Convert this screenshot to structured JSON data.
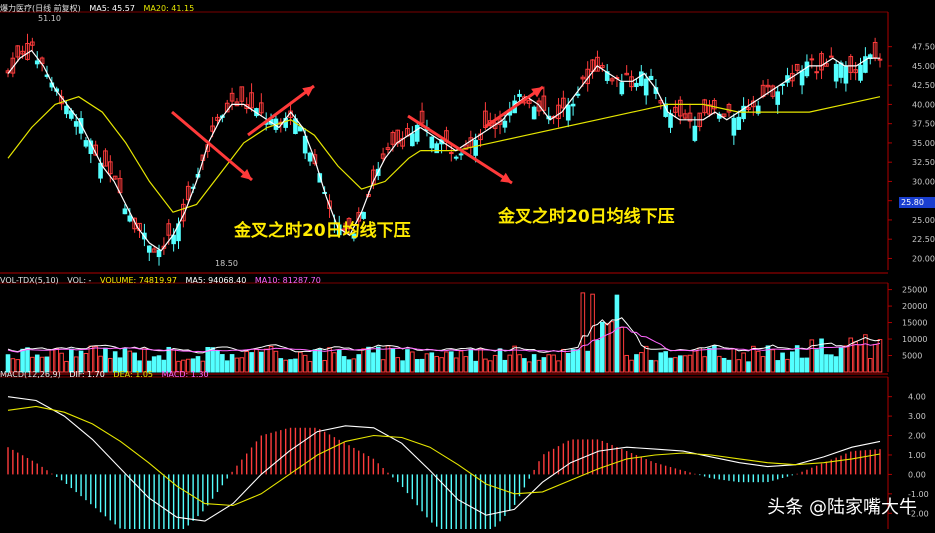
{
  "main_header": {
    "name": "爆力医疗(日线 前复权)",
    "ma5": "MA5: 45.57",
    "ma20": "MA20: 41.15"
  },
  "vol_header": {
    "name": "VOL-TDX(5,10)",
    "vol": "VOL: -",
    "volume": "VOLUME: 74819.97",
    "ma5": "MA5: 94068.40",
    "ma10": "MA10: 81287.70"
  },
  "macd_header": {
    "name": "MACD(12,26,9)",
    "dif": "DIF: 1.70",
    "dea": "DEA: 1.05",
    "macd": "MACD: 1.30"
  },
  "annotations": [
    "金叉之时20日均线下压",
    "金叉之时20日均线下压"
  ],
  "high_label": "51.10",
  "low_label": "18.50",
  "current_price": "25.80",
  "watermark": "头条 @陆家嘴大牛",
  "colors": {
    "up": "#ff3c3c",
    "down": "#54ffff",
    "ma5": "#ffffff",
    "ma20": "#e6e600",
    "ma10_vol": "#ff66ff",
    "arrow": "#ff3a3a",
    "grid": "#7a0000"
  },
  "chart_data": [
    {
      "type": "line",
      "title": "",
      "ylabel": "",
      "y_ticks": [
        "47.50",
        "45.00",
        "42.50",
        "40.00",
        "37.50",
        "35.00",
        "32.50",
        "30.00",
        "27.50",
        "25.00",
        "22.50",
        "20.00"
      ],
      "ylim": [
        18.5,
        52
      ],
      "series": [
        {
          "name": "MA5",
          "x": [
            0,
            5,
            10,
            15,
            20,
            25,
            30,
            35,
            40,
            45,
            50,
            55,
            60,
            65,
            70,
            75,
            80,
            85,
            90,
            95,
            100,
            105,
            110,
            115,
            120,
            125,
            130,
            135,
            140,
            145,
            150,
            155,
            160,
            165,
            170,
            175
          ],
          "values": [
            44,
            46,
            47,
            45,
            42,
            40,
            38,
            35,
            32,
            30,
            27,
            24,
            22,
            21,
            23,
            26,
            30,
            35,
            38,
            40,
            40,
            39,
            38,
            37,
            39,
            37,
            33,
            28,
            24,
            23,
            26,
            30,
            33,
            35,
            36,
            37
          ]
        },
        {
          "name": "MA20",
          "x": [
            0,
            10,
            20,
            30,
            40,
            50,
            60,
            70,
            80,
            90,
            100,
            110,
            120,
            130,
            140,
            150,
            160,
            170,
            175
          ],
          "values": [
            33,
            37,
            40,
            41,
            39,
            35,
            30,
            26,
            27,
            31,
            35,
            37,
            38,
            36,
            32,
            29,
            30,
            33,
            34
          ]
        },
        {
          "name": "MA5",
          "x": [
            175,
            180,
            185,
            190,
            195,
            200,
            205,
            210,
            215,
            220,
            225,
            230,
            235,
            240,
            245,
            250,
            255,
            260,
            265,
            270,
            275,
            280,
            285,
            290,
            295,
            300,
            305,
            310,
            315,
            320,
            325,
            330,
            335,
            340,
            345,
            350,
            355,
            360,
            365,
            370
          ],
          "values": [
            37,
            36,
            35,
            34,
            35,
            36,
            37,
            38,
            40,
            41,
            40,
            38,
            39,
            41,
            43,
            45,
            44,
            43,
            43,
            44,
            42,
            39,
            38,
            38,
            38,
            39,
            38,
            39,
            40,
            41,
            42,
            43,
            44,
            45,
            45,
            46,
            45,
            45,
            46,
            46
          ]
        },
        {
          "name": "MA20",
          "x": [
            175,
            190,
            205,
            220,
            235,
            250,
            265,
            280,
            295,
            310,
            325,
            340,
            355,
            370
          ],
          "values": [
            34,
            34,
            35,
            36,
            37,
            38,
            39,
            40,
            40,
            39,
            39,
            39,
            40,
            41
          ]
        }
      ]
    },
    {
      "type": "bar",
      "title": "",
      "ylabel": "",
      "y_ticks": [
        "25000",
        "20000",
        "15000",
        "10000",
        "5000"
      ],
      "ylim": [
        0,
        27000
      ],
      "bar_count": 180,
      "peak_volume": 24000
    },
    {
      "type": "bar",
      "title": "",
      "ylabel": "",
      "y_ticks": [
        "4.00",
        "3.00",
        "2.00",
        "1.00",
        "0.00",
        "-1.00",
        "-2.00"
      ],
      "ylim": [
        -2.5,
        4.6
      ],
      "dif_samples": [
        4.0,
        3.8,
        3.0,
        1.8,
        0.3,
        -1.2,
        -2.2,
        -2.4,
        -1.5,
        0.0,
        1.2,
        2.2,
        2.5,
        2.4,
        1.6,
        0.2,
        -1.3,
        -2.1,
        -1.8,
        -0.4,
        0.6,
        1.2,
        1.4,
        1.3,
        1.2,
        0.9,
        0.6,
        0.4,
        0.5,
        0.9,
        1.4,
        1.7
      ],
      "dea_samples": [
        3.3,
        3.5,
        3.2,
        2.6,
        1.7,
        0.6,
        -0.6,
        -1.5,
        -1.6,
        -1.0,
        0.0,
        1.0,
        1.7,
        2.0,
        1.9,
        1.4,
        0.5,
        -0.5,
        -1.0,
        -0.9,
        -0.3,
        0.3,
        0.8,
        1.0,
        1.1,
        1.0,
        0.8,
        0.6,
        0.5,
        0.6,
        0.8,
        1.05
      ]
    }
  ]
}
